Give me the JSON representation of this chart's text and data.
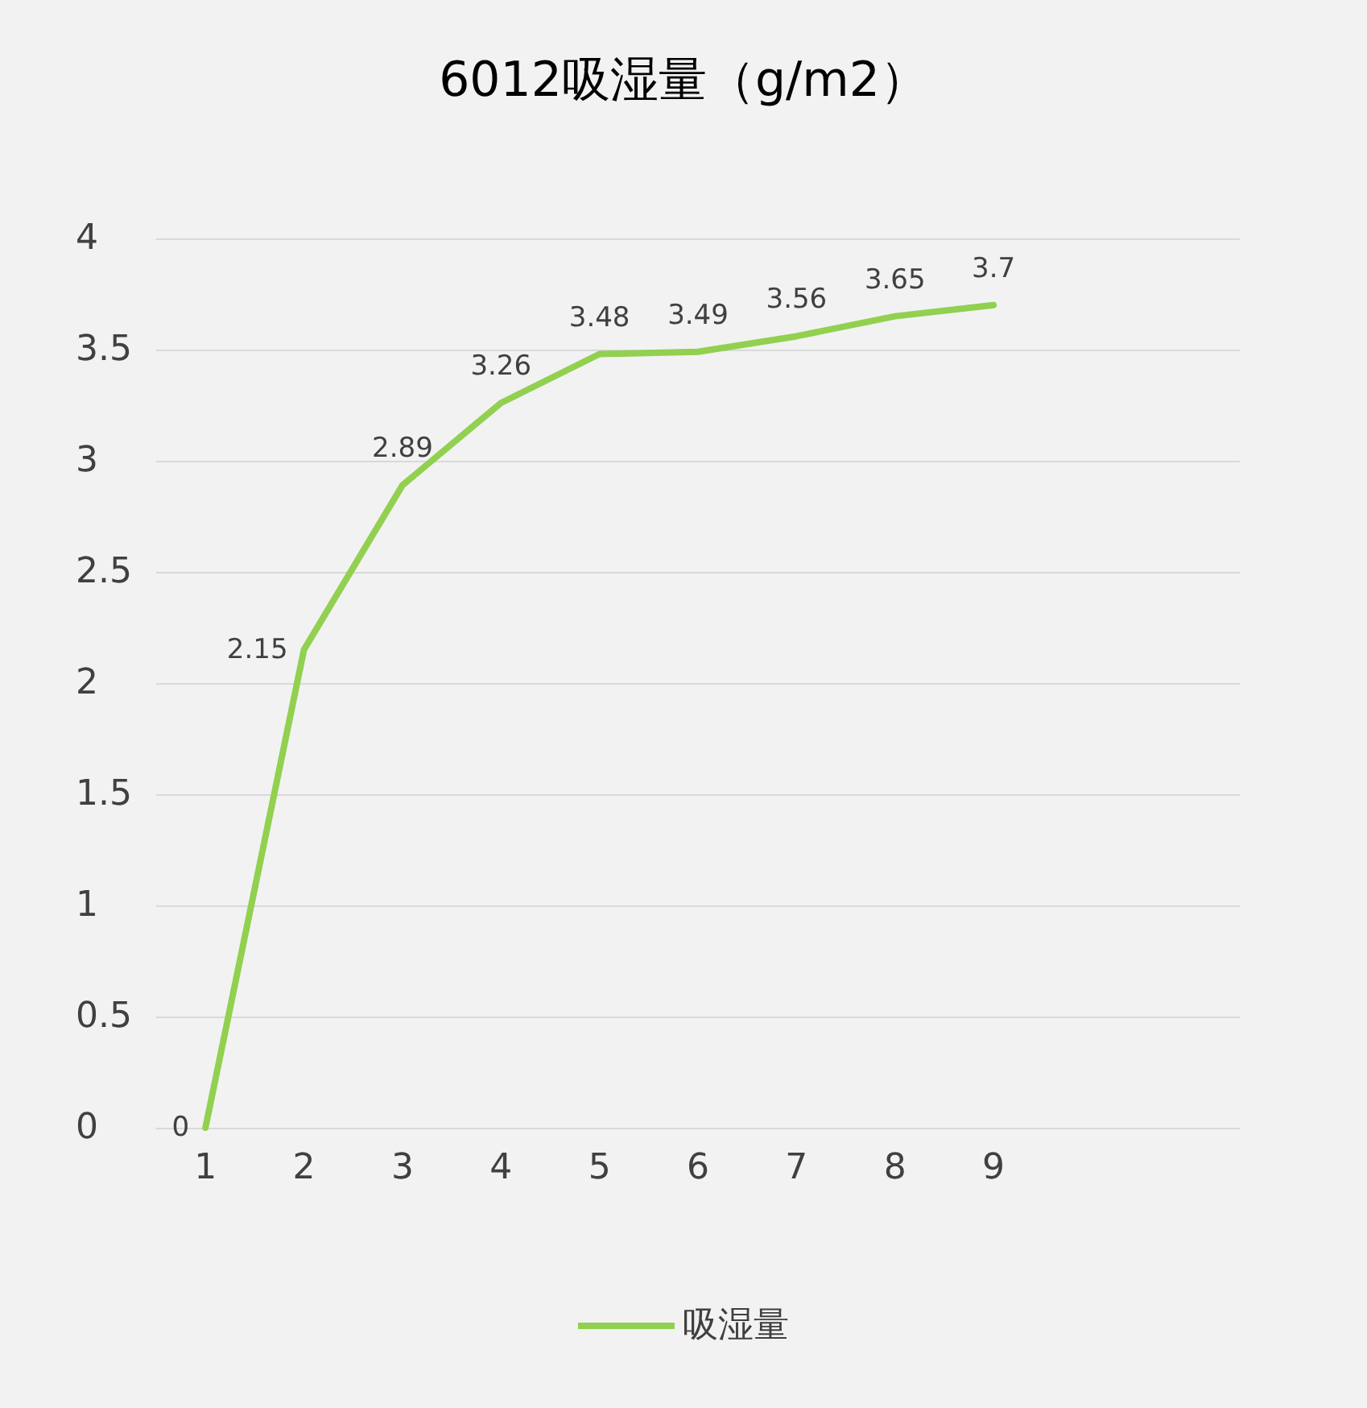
{
  "chart_data": {
    "type": "line",
    "title": "6012吸湿量（g/m2）",
    "categories": [
      "1",
      "2",
      "3",
      "4",
      "5",
      "6",
      "7",
      "8",
      "9",
      null,
      null
    ],
    "series": [
      {
        "name": "吸湿量",
        "color": "#92d050",
        "values": [
          0,
          2.15,
          2.89,
          3.26,
          3.48,
          3.49,
          3.56,
          3.65,
          3.7,
          null,
          null
        ]
      }
    ],
    "ylim": [
      0,
      4
    ],
    "yticks": [
      0,
      0.5,
      1,
      1.5,
      2,
      2.5,
      3,
      3.5,
      4
    ],
    "grid": "y",
    "legend": "bottom",
    "marker": "none",
    "line_style": "solid",
    "data_labels": true
  }
}
